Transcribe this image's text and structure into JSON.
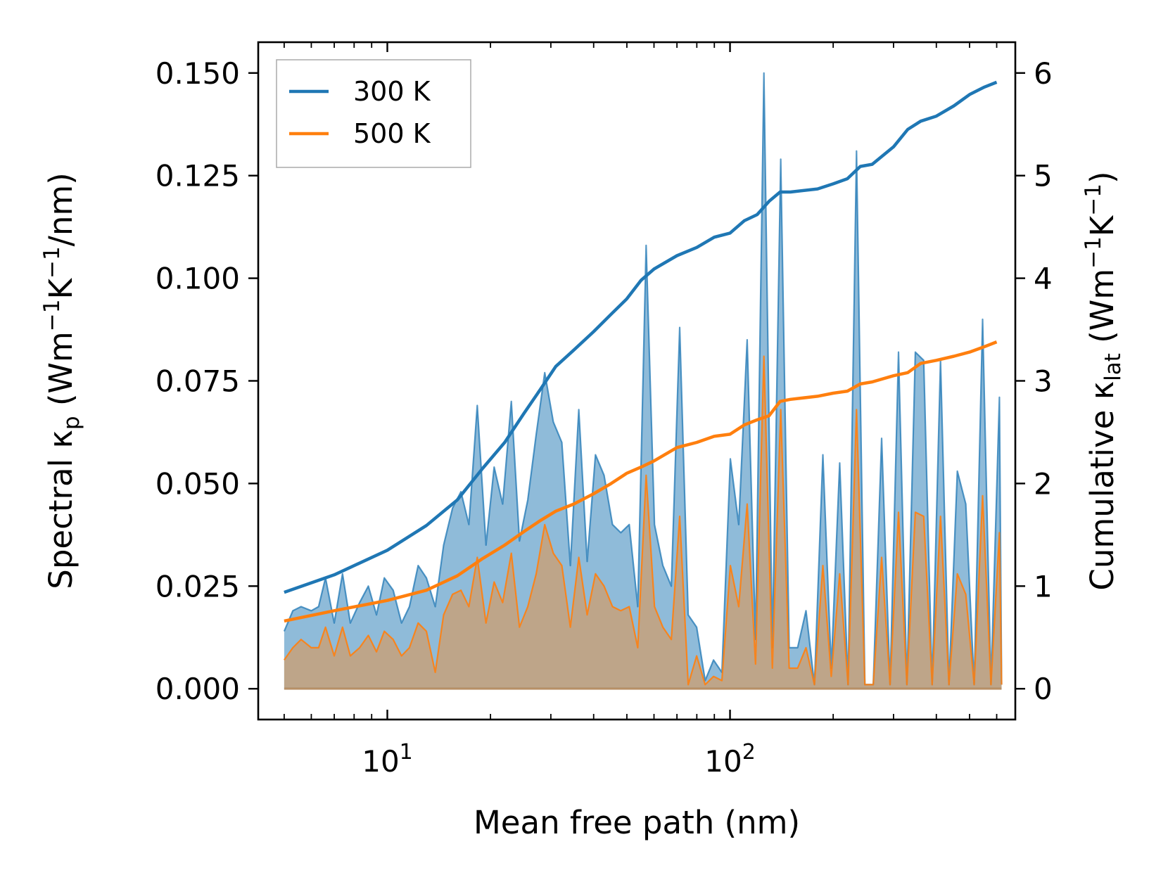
{
  "chart_data": {
    "type": "line",
    "xscale": "log",
    "xlabel": "Mean free path (nm)",
    "ylabel_left": [
      "Spectral κ",
      "p",
      " (Wm",
      "−1",
      "K",
      "−1",
      "/nm)"
    ],
    "ylabel_right": [
      "Cumulative κ",
      "lat",
      " (Wm",
      "−1",
      "K",
      "−1",
      ")"
    ],
    "xlim": [
      4.2,
      680
    ],
    "ylim_left": [
      -0.0075,
      0.1575
    ],
    "ylim_right": [
      -0.3,
      6.3
    ],
    "x_ticks": [
      {
        "value": 10,
        "base": "10",
        "exp": "1"
      },
      {
        "value": 100,
        "base": "10",
        "exp": "2"
      }
    ],
    "left_ticks": [
      {
        "value": 0,
        "label": "0.000"
      },
      {
        "value": 0.025,
        "label": "0.025"
      },
      {
        "value": 0.05,
        "label": "0.050"
      },
      {
        "value": 0.075,
        "label": "0.075"
      },
      {
        "value": 0.1,
        "label": "0.100"
      },
      {
        "value": 0.125,
        "label": "0.125"
      },
      {
        "value": 0.15,
        "label": "0.150"
      }
    ],
    "right_ticks": [
      {
        "value": 0,
        "label": "0"
      },
      {
        "value": 1,
        "label": "1"
      },
      {
        "value": 2,
        "label": "2"
      },
      {
        "value": 3,
        "label": "3"
      },
      {
        "value": 4,
        "label": "4"
      },
      {
        "value": 5,
        "label": "5"
      },
      {
        "value": 6,
        "label": "6"
      }
    ],
    "legend_position": "top-left",
    "series": [
      {
        "name": "300 K",
        "color": "#1f77b4",
        "fill_color": "#1f77b4",
        "cumulative": [
          [
            5,
            0.94
          ],
          [
            7,
            1.11
          ],
          [
            10,
            1.35
          ],
          [
            13,
            1.59
          ],
          [
            16,
            1.84
          ],
          [
            19,
            2.15
          ],
          [
            22,
            2.4
          ],
          [
            25,
            2.68
          ],
          [
            28,
            2.92
          ],
          [
            31,
            3.14
          ],
          [
            35,
            3.3
          ],
          [
            40,
            3.48
          ],
          [
            45,
            3.65
          ],
          [
            50,
            3.8
          ],
          [
            55,
            3.98
          ],
          [
            60,
            4.09
          ],
          [
            70,
            4.22
          ],
          [
            80,
            4.3
          ],
          [
            90,
            4.4
          ],
          [
            100,
            4.44
          ],
          [
            110,
            4.56
          ],
          [
            120,
            4.62
          ],
          [
            130,
            4.75
          ],
          [
            140,
            4.84
          ],
          [
            150,
            4.84
          ],
          [
            180,
            4.87
          ],
          [
            200,
            4.92
          ],
          [
            220,
            4.97
          ],
          [
            240,
            5.09
          ],
          [
            260,
            5.11
          ],
          [
            300,
            5.28
          ],
          [
            330,
            5.45
          ],
          [
            360,
            5.53
          ],
          [
            400,
            5.58
          ],
          [
            450,
            5.68
          ],
          [
            500,
            5.79
          ],
          [
            550,
            5.86
          ],
          [
            600,
            5.91
          ]
        ],
        "spectral": [
          [
            5,
            0.014
          ],
          [
            5.3,
            0.019
          ],
          [
            5.6,
            0.02
          ],
          [
            6,
            0.019
          ],
          [
            6.3,
            0.02
          ],
          [
            6.6,
            0.027
          ],
          [
            7,
            0.016
          ],
          [
            7.4,
            0.028
          ],
          [
            7.8,
            0.016
          ],
          [
            8.3,
            0.021
          ],
          [
            8.8,
            0.025
          ],
          [
            9.3,
            0.018
          ],
          [
            9.8,
            0.027
          ],
          [
            10.4,
            0.024
          ],
          [
            11,
            0.016
          ],
          [
            11.6,
            0.02
          ],
          [
            12.3,
            0.03
          ],
          [
            13,
            0.027
          ],
          [
            13.8,
            0.02
          ],
          [
            14.6,
            0.035
          ],
          [
            15.5,
            0.044
          ],
          [
            16.4,
            0.048
          ],
          [
            17.3,
            0.04
          ],
          [
            18.3,
            0.069
          ],
          [
            19.4,
            0.035
          ],
          [
            20.5,
            0.054
          ],
          [
            21.7,
            0.045
          ],
          [
            23,
            0.07
          ],
          [
            24.3,
            0.036
          ],
          [
            25.7,
            0.046
          ],
          [
            27.2,
            0.062
          ],
          [
            28.8,
            0.077
          ],
          [
            30.5,
            0.065
          ],
          [
            32.3,
            0.06
          ],
          [
            34.2,
            0.03
          ],
          [
            36.2,
            0.068
          ],
          [
            38.3,
            0.031
          ],
          [
            40.5,
            0.057
          ],
          [
            42.9,
            0.052
          ],
          [
            45.4,
            0.04
          ],
          [
            48,
            0.038
          ],
          [
            50.8,
            0.04
          ],
          [
            53.8,
            0.02
          ],
          [
            56.9,
            0.108
          ],
          [
            60.2,
            0.04
          ],
          [
            63.7,
            0.03
          ],
          [
            67.4,
            0.025
          ],
          [
            71.3,
            0.088
          ],
          [
            75.5,
            0.018
          ],
          [
            79.9,
            0.015
          ],
          [
            84.6,
            0.002
          ],
          [
            89.5,
            0.007
          ],
          [
            94.7,
            0.004
          ],
          [
            100.2,
            0.056
          ],
          [
            106,
            0.04
          ],
          [
            112.2,
            0.085
          ],
          [
            118.7,
            0.012
          ],
          [
            125.6,
            0.15
          ],
          [
            132.9,
            0.01
          ],
          [
            140.6,
            0.129
          ],
          [
            148.8,
            0.01
          ],
          [
            157.5,
            0.01
          ],
          [
            166.6,
            0.019
          ],
          [
            176.3,
            0.001
          ],
          [
            186.6,
            0.057
          ],
          [
            197.4,
            0.005
          ],
          [
            208.9,
            0.055
          ],
          [
            221,
            0.001
          ],
          [
            233.9,
            0.131
          ],
          [
            247.5,
            0.001
          ],
          [
            261.8,
            0.001
          ],
          [
            277,
            0.061
          ],
          [
            293.1,
            0.001
          ],
          [
            310.2,
            0.082
          ],
          [
            328.2,
            0.001
          ],
          [
            347.3,
            0.082
          ],
          [
            367.5,
            0.08
          ],
          [
            388.8,
            0.001
          ],
          [
            411.4,
            0.08
          ],
          [
            435.3,
            0.001
          ],
          [
            460.6,
            0.053
          ],
          [
            487.4,
            0.045
          ],
          [
            515.7,
            0.001
          ],
          [
            545.7,
            0.09
          ],
          [
            577.4,
            0.001
          ],
          [
            611,
            0.071
          ],
          [
            620,
            0.001
          ]
        ]
      },
      {
        "name": "500 K",
        "color": "#ff7f0e",
        "fill_color": "#c7a17a",
        "cumulative": [
          [
            5,
            0.66
          ],
          [
            7,
            0.76
          ],
          [
            10,
            0.86
          ],
          [
            13,
            0.96
          ],
          [
            16,
            1.1
          ],
          [
            19,
            1.27
          ],
          [
            22,
            1.4
          ],
          [
            25,
            1.53
          ],
          [
            28,
            1.64
          ],
          [
            31,
            1.73
          ],
          [
            35,
            1.8
          ],
          [
            40,
            1.9
          ],
          [
            45,
            2.0
          ],
          [
            50,
            2.1
          ],
          [
            55,
            2.16
          ],
          [
            60,
            2.22
          ],
          [
            70,
            2.35
          ],
          [
            80,
            2.4
          ],
          [
            90,
            2.46
          ],
          [
            100,
            2.48
          ],
          [
            110,
            2.57
          ],
          [
            120,
            2.62
          ],
          [
            130,
            2.66
          ],
          [
            140,
            2.8
          ],
          [
            150,
            2.82
          ],
          [
            180,
            2.85
          ],
          [
            200,
            2.88
          ],
          [
            220,
            2.9
          ],
          [
            240,
            2.97
          ],
          [
            260,
            2.99
          ],
          [
            300,
            3.05
          ],
          [
            330,
            3.08
          ],
          [
            360,
            3.17
          ],
          [
            400,
            3.2
          ],
          [
            450,
            3.24
          ],
          [
            500,
            3.28
          ],
          [
            550,
            3.33
          ],
          [
            600,
            3.38
          ]
        ],
        "spectral": [
          [
            5,
            0.007
          ],
          [
            5.3,
            0.01
          ],
          [
            5.6,
            0.012
          ],
          [
            6,
            0.01
          ],
          [
            6.3,
            0.01
          ],
          [
            6.6,
            0.015
          ],
          [
            7,
            0.008
          ],
          [
            7.4,
            0.015
          ],
          [
            7.8,
            0.008
          ],
          [
            8.3,
            0.01
          ],
          [
            8.8,
            0.013
          ],
          [
            9.3,
            0.009
          ],
          [
            9.8,
            0.014
          ],
          [
            10.4,
            0.012
          ],
          [
            11,
            0.008
          ],
          [
            11.6,
            0.01
          ],
          [
            12.3,
            0.016
          ],
          [
            13,
            0.014
          ],
          [
            13.8,
            0.004
          ],
          [
            14.6,
            0.018
          ],
          [
            15.5,
            0.023
          ],
          [
            16.4,
            0.024
          ],
          [
            17.3,
            0.02
          ],
          [
            18.3,
            0.032
          ],
          [
            19.4,
            0.016
          ],
          [
            20.5,
            0.026
          ],
          [
            21.7,
            0.021
          ],
          [
            23,
            0.033
          ],
          [
            24.3,
            0.015
          ],
          [
            25.7,
            0.02
          ],
          [
            27.2,
            0.028
          ],
          [
            28.8,
            0.04
          ],
          [
            30.5,
            0.033
          ],
          [
            32.3,
            0.03
          ],
          [
            34.2,
            0.015
          ],
          [
            36.2,
            0.032
          ],
          [
            38.3,
            0.018
          ],
          [
            40.5,
            0.028
          ],
          [
            42.9,
            0.025
          ],
          [
            45.4,
            0.02
          ],
          [
            48,
            0.019
          ],
          [
            50.8,
            0.02
          ],
          [
            53.8,
            0.01
          ],
          [
            56.9,
            0.052
          ],
          [
            60.2,
            0.02
          ],
          [
            63.7,
            0.015
          ],
          [
            67.4,
            0.012
          ],
          [
            71.3,
            0.042
          ],
          [
            75.5,
            0.001
          ],
          [
            79.9,
            0.008
          ],
          [
            84.6,
            0.001
          ],
          [
            89.5,
            0.003
          ],
          [
            94.7,
            0.002
          ],
          [
            100.2,
            0.03
          ],
          [
            106,
            0.02
          ],
          [
            112.2,
            0.045
          ],
          [
            118.7,
            0.006
          ],
          [
            125.6,
            0.081
          ],
          [
            132.9,
            0.005
          ],
          [
            140.6,
            0.068
          ],
          [
            148.8,
            0.005
          ],
          [
            157.5,
            0.005
          ],
          [
            166.6,
            0.01
          ],
          [
            176.3,
            0.001
          ],
          [
            186.6,
            0.03
          ],
          [
            197.4,
            0.003
          ],
          [
            208.9,
            0.028
          ],
          [
            221,
            0.001
          ],
          [
            233.9,
            0.068
          ],
          [
            247.5,
            0.001
          ],
          [
            261.8,
            0.001
          ],
          [
            277,
            0.032
          ],
          [
            293.1,
            0.001
          ],
          [
            310.2,
            0.043
          ],
          [
            328.2,
            0.001
          ],
          [
            347.3,
            0.043
          ],
          [
            367.5,
            0.042
          ],
          [
            388.8,
            0.001
          ],
          [
            411.4,
            0.042
          ],
          [
            435.3,
            0.001
          ],
          [
            460.6,
            0.028
          ],
          [
            487.4,
            0.023
          ],
          [
            515.7,
            0.001
          ],
          [
            545.7,
            0.047
          ],
          [
            577.4,
            0.001
          ],
          [
            611,
            0.038
          ],
          [
            620,
            0.001
          ]
        ]
      }
    ]
  }
}
